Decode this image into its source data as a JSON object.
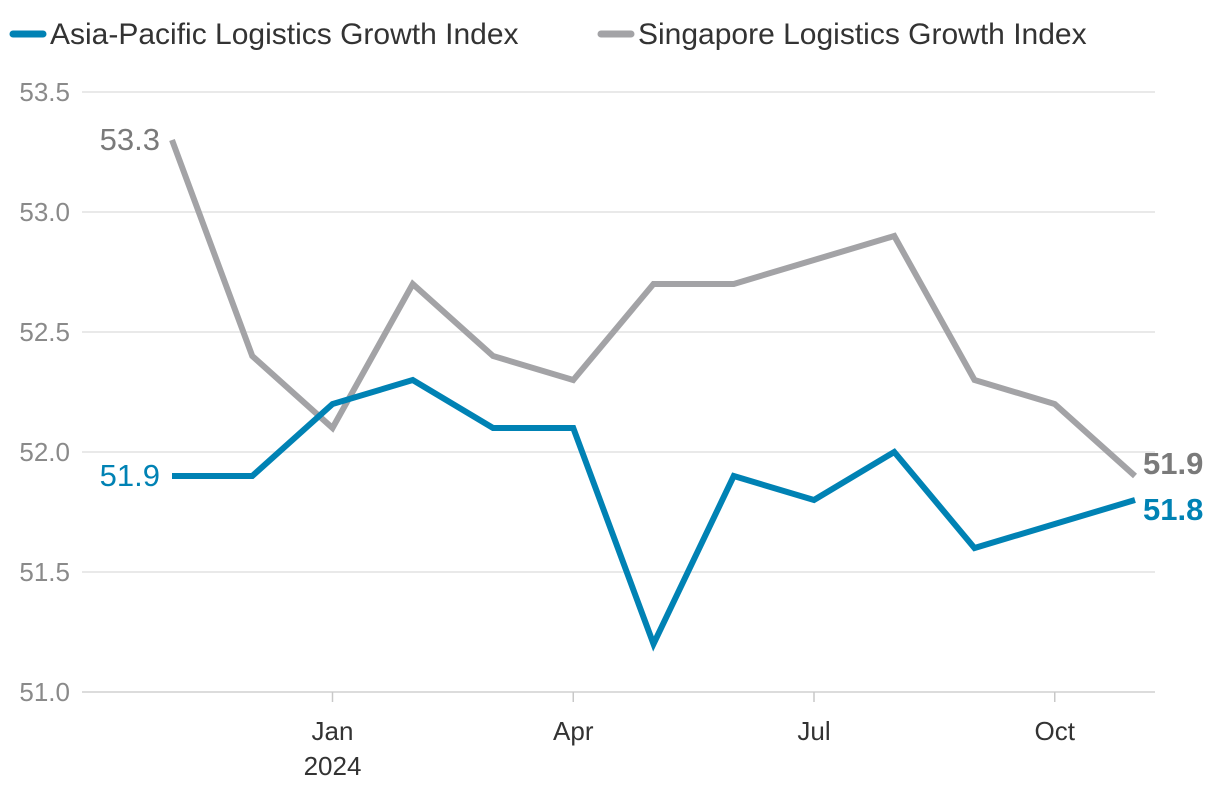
{
  "chart_data": {
    "type": "line",
    "x": [
      "2023-11",
      "2023-12",
      "2024-01",
      "2024-02",
      "2024-03",
      "2024-04",
      "2024-05",
      "2024-06",
      "2024-07",
      "2024-08",
      "2024-09",
      "2024-10",
      "2024-11"
    ],
    "series": [
      {
        "name": "Asia-Pacific Logistics Growth Index",
        "color": "#0082b4",
        "values": [
          51.9,
          51.9,
          52.2,
          52.3,
          52.1,
          52.1,
          51.2,
          51.9,
          51.8,
          52.0,
          51.6,
          51.7,
          51.8
        ],
        "start_label": "51.9",
        "end_label": "51.8"
      },
      {
        "name": "Singapore Logistics Growth Index",
        "color": "#a3a3a6",
        "values": [
          53.3,
          52.4,
          52.1,
          52.7,
          52.4,
          52.3,
          52.7,
          52.7,
          52.8,
          52.9,
          52.3,
          52.2,
          51.9
        ],
        "start_label": "53.3",
        "end_label": "51.9"
      }
    ],
    "ylim": [
      51.0,
      53.5
    ],
    "yticks": [
      "51.0",
      "51.5",
      "52.0",
      "52.5",
      "53.0",
      "53.5"
    ],
    "xticks": [
      {
        "x": "2024-01",
        "label": "Jan",
        "sublabel": "2024"
      },
      {
        "x": "2024-04",
        "label": "Apr",
        "sublabel": ""
      },
      {
        "x": "2024-07",
        "label": "Jul",
        "sublabel": ""
      },
      {
        "x": "2024-10",
        "label": "Oct",
        "sublabel": ""
      }
    ],
    "grid": true,
    "legend_position": "top-left",
    "title": "",
    "xlabel": "",
    "ylabel": ""
  }
}
